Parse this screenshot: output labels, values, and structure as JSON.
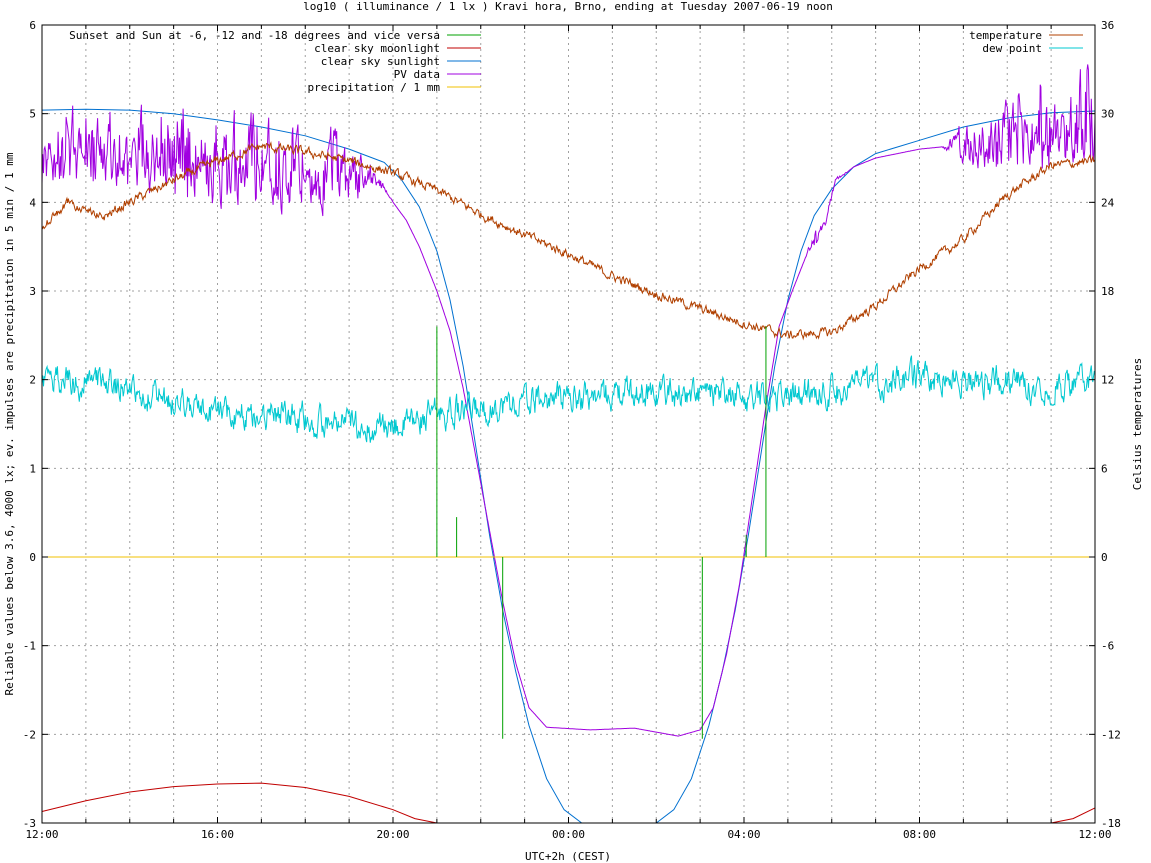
{
  "chart_data": {
    "type": "line",
    "title": "log10 ( illuminance / 1 lx ) Kravi hora, Brno, ending at Tuesday 2007-06-19 noon",
    "xlabel": "UTC+2h (CEST)",
    "ylabel": "Reliable values below 3.6, 4000 lx; ev. impulses are precipitation in 5 min / 1 mm",
    "y2label": "Celsius temperatures",
    "x_unit": "hours since 12:00 (UTC+2h)",
    "xlim": [
      0,
      24
    ],
    "ylim": [
      -3,
      6
    ],
    "y2lim": [
      -18,
      36
    ],
    "x_ticks": [
      {
        "x": 0,
        "label": "12:00"
      },
      {
        "x": 4,
        "label": "16:00"
      },
      {
        "x": 8,
        "label": "20:00"
      },
      {
        "x": 12,
        "label": "00:00"
      },
      {
        "x": 16,
        "label": "04:00"
      },
      {
        "x": 20,
        "label": "08:00"
      },
      {
        "x": 24,
        "label": "12:00"
      }
    ],
    "y_ticks": [
      {
        "v": -3,
        "label": "-3"
      },
      {
        "v": -2,
        "label": "-2"
      },
      {
        "v": -1,
        "label": "-1"
      },
      {
        "v": 0,
        "label": "0"
      },
      {
        "v": 1,
        "label": "1"
      },
      {
        "v": 2,
        "label": "2"
      },
      {
        "v": 3,
        "label": "3"
      },
      {
        "v": 4,
        "label": "4"
      },
      {
        "v": 5,
        "label": "5"
      },
      {
        "v": 6,
        "label": "6"
      }
    ],
    "y2_ticks": [
      {
        "v": -18,
        "label": "-18"
      },
      {
        "v": -12,
        "label": "-12"
      },
      {
        "v": -6,
        "label": "-6"
      },
      {
        "v": 0,
        "label": "0"
      },
      {
        "v": 6,
        "label": "6"
      },
      {
        "v": 12,
        "label": "12"
      },
      {
        "v": 18,
        "label": "18"
      },
      {
        "v": 24,
        "label": "24"
      },
      {
        "v": 30,
        "label": "30"
      },
      {
        "v": 36,
        "label": "36"
      }
    ],
    "grid": true,
    "legend_left": [
      {
        "name": "Sunset and Sun at -6, -12 and -18 degrees and vice versa",
        "color": "#00a000"
      },
      {
        "name": "clear sky moonlight",
        "color": "#c00000"
      },
      {
        "name": "clear sky sunlight",
        "color": "#0070d0"
      },
      {
        "name": "PV data",
        "color": "#a000e0"
      },
      {
        "name": "precipitation / 1 mm",
        "color": "#f0c000"
      }
    ],
    "legend_right": [
      {
        "name": "temperature",
        "color": "#b04000"
      },
      {
        "name": "dew point",
        "color": "#00c8d0"
      }
    ],
    "series": [
      {
        "id": "clear-sky-sunlight",
        "color": "#0070d0",
        "axis": "y",
        "points": [
          [
            0,
            5.04
          ],
          [
            1,
            5.05
          ],
          [
            2,
            5.04
          ],
          [
            3,
            5.0
          ],
          [
            4,
            4.93
          ],
          [
            5,
            4.85
          ],
          [
            6,
            4.75
          ],
          [
            7,
            4.6
          ],
          [
            7.8,
            4.45
          ],
          [
            8.2,
            4.25
          ],
          [
            8.6,
            3.95
          ],
          [
            9,
            3.45
          ],
          [
            9.3,
            2.9
          ],
          [
            9.6,
            2.15
          ],
          [
            9.9,
            1.2
          ],
          [
            10.2,
            0.25
          ],
          [
            10.5,
            -0.6
          ],
          [
            10.8,
            -1.3
          ],
          [
            11.1,
            -1.9
          ],
          [
            11.5,
            -2.5
          ],
          [
            11.9,
            -2.85
          ],
          [
            12.3,
            -3.0
          ],
          [
            14.0,
            -3.0
          ],
          [
            14.4,
            -2.85
          ],
          [
            14.8,
            -2.5
          ],
          [
            15.2,
            -1.9
          ],
          [
            15.5,
            -1.3
          ],
          [
            15.8,
            -0.6
          ],
          [
            16.1,
            0.25
          ],
          [
            16.4,
            1.2
          ],
          [
            16.7,
            2.15
          ],
          [
            17.0,
            2.9
          ],
          [
            17.3,
            3.45
          ],
          [
            17.6,
            3.85
          ],
          [
            18.0,
            4.15
          ],
          [
            18.5,
            4.4
          ],
          [
            19,
            4.55
          ],
          [
            20,
            4.7
          ],
          [
            21,
            4.85
          ],
          [
            22,
            4.95
          ],
          [
            23,
            5.01
          ],
          [
            24,
            5.03
          ]
        ]
      },
      {
        "id": "clear-sky-moonlight",
        "color": "#c00000",
        "axis": "y",
        "points": [
          [
            0,
            -2.87
          ],
          [
            1,
            -2.75
          ],
          [
            2,
            -2.65
          ],
          [
            3,
            -2.59
          ],
          [
            4,
            -2.56
          ],
          [
            5,
            -2.55
          ],
          [
            6,
            -2.6
          ],
          [
            7,
            -2.7
          ],
          [
            8,
            -2.85
          ],
          [
            8.5,
            -2.95
          ],
          [
            9,
            -3.0
          ],
          [
            23.0,
            -3.0
          ],
          [
            23.5,
            -2.95
          ],
          [
            24,
            -2.83
          ]
        ]
      },
      {
        "id": "pv-data",
        "color": "#a000e0",
        "axis": "y",
        "noise": [
          [
            0,
            0.3
          ],
          [
            4,
            0.35
          ],
          [
            7,
            0.3
          ],
          [
            7.5,
            0.1
          ],
          [
            8,
            0
          ],
          [
            17.4,
            0
          ],
          [
            17.6,
            0.08
          ],
          [
            18.4,
            0
          ],
          [
            20.5,
            0
          ],
          [
            21,
            0.2
          ],
          [
            23,
            0.35
          ],
          [
            24,
            0.4
          ]
        ],
        "points": [
          [
            0,
            4.6
          ],
          [
            1,
            4.65
          ],
          [
            2,
            4.55
          ],
          [
            3,
            4.5
          ],
          [
            4,
            4.45
          ],
          [
            5,
            4.45
          ],
          [
            6,
            4.4
          ],
          [
            7,
            4.35
          ],
          [
            7.6,
            4.3
          ],
          [
            8,
            4.0
          ],
          [
            8.3,
            3.8
          ],
          [
            8.6,
            3.5
          ],
          [
            9,
            3.0
          ],
          [
            9.3,
            2.55
          ],
          [
            9.6,
            1.9
          ],
          [
            9.9,
            1.1
          ],
          [
            10.2,
            0.3
          ],
          [
            10.5,
            -0.5
          ],
          [
            10.8,
            -1.2
          ],
          [
            11.1,
            -1.7
          ],
          [
            11.5,
            -1.92
          ],
          [
            12.5,
            -1.95
          ],
          [
            13.5,
            -1.93
          ],
          [
            14.5,
            -2.02
          ],
          [
            15.0,
            -1.95
          ],
          [
            15.3,
            -1.7
          ],
          [
            15.6,
            -1.1
          ],
          [
            15.9,
            -0.3
          ],
          [
            16.2,
            0.7
          ],
          [
            16.5,
            1.7
          ],
          [
            16.8,
            2.6
          ],
          [
            17.1,
            3.0
          ],
          [
            17.5,
            3.5
          ],
          [
            17.9,
            3.85
          ],
          [
            18.1,
            4.25
          ],
          [
            18.5,
            4.4
          ],
          [
            19,
            4.5
          ],
          [
            20,
            4.6
          ],
          [
            21,
            4.65
          ],
          [
            22,
            4.75
          ],
          [
            23,
            4.8
          ],
          [
            24,
            4.9
          ]
        ]
      },
      {
        "id": "precipitation",
        "color": "#f0c000",
        "axis": "y",
        "points": [
          [
            0,
            0
          ],
          [
            24,
            0
          ]
        ]
      },
      {
        "id": "temperature",
        "color": "#b04000",
        "axis": "y2",
        "noise": [
          [
            0,
            0.25
          ],
          [
            24,
            0.25
          ]
        ],
        "points": [
          [
            0,
            22.2
          ],
          [
            0.6,
            24.0
          ],
          [
            1.4,
            23.0
          ],
          [
            2.0,
            24.0
          ],
          [
            3.0,
            25.5
          ],
          [
            4.0,
            26.8
          ],
          [
            5.0,
            27.8
          ],
          [
            6.0,
            27.4
          ],
          [
            7.0,
            26.8
          ],
          [
            8.0,
            26.0
          ],
          [
            9.0,
            24.8
          ],
          [
            10.0,
            23.2
          ],
          [
            11.0,
            21.8
          ],
          [
            12.0,
            20.5
          ],
          [
            13.0,
            19.0
          ],
          [
            14.0,
            17.8
          ],
          [
            15.0,
            16.8
          ],
          [
            16.0,
            15.8
          ],
          [
            17.0,
            15.0
          ],
          [
            18.0,
            15.2
          ],
          [
            19.0,
            17.0
          ],
          [
            20.0,
            19.5
          ],
          [
            21.0,
            21.5
          ],
          [
            22.0,
            24.5
          ],
          [
            23.0,
            26.5
          ],
          [
            24.0,
            26.8
          ]
        ]
      },
      {
        "id": "dew-point",
        "color": "#00c8d0",
        "axis": "y2",
        "noise": [
          [
            0,
            0.8
          ],
          [
            24,
            0.8
          ]
        ],
        "points": [
          [
            0,
            12.2
          ],
          [
            1,
            11.8
          ],
          [
            2,
            11.5
          ],
          [
            3,
            10.5
          ],
          [
            4,
            9.8
          ],
          [
            5,
            9.7
          ],
          [
            6,
            9.2
          ],
          [
            7,
            8.9
          ],
          [
            8,
            8.7
          ],
          [
            9,
            9.7
          ],
          [
            10,
            10.0
          ],
          [
            11,
            10.5
          ],
          [
            12,
            10.8
          ],
          [
            13,
            11.0
          ],
          [
            14,
            11.2
          ],
          [
            15,
            11.0
          ],
          [
            16,
            10.8
          ],
          [
            17,
            11.0
          ],
          [
            18,
            11.3
          ],
          [
            19,
            11.7
          ],
          [
            20,
            12.2
          ],
          [
            21,
            12.0
          ],
          [
            22,
            11.8
          ],
          [
            23,
            11.5
          ],
          [
            24,
            12.0
          ]
        ]
      }
    ],
    "impulses": {
      "color": "#00a000",
      "lines": [
        [
          9.0,
          2.6
        ],
        [
          9.45,
          0.45
        ],
        [
          10.5,
          -2.05
        ],
        [
          15.05,
          -2.05
        ],
        [
          16.05,
          0.25
        ],
        [
          16.5,
          2.6
        ]
      ]
    }
  }
}
